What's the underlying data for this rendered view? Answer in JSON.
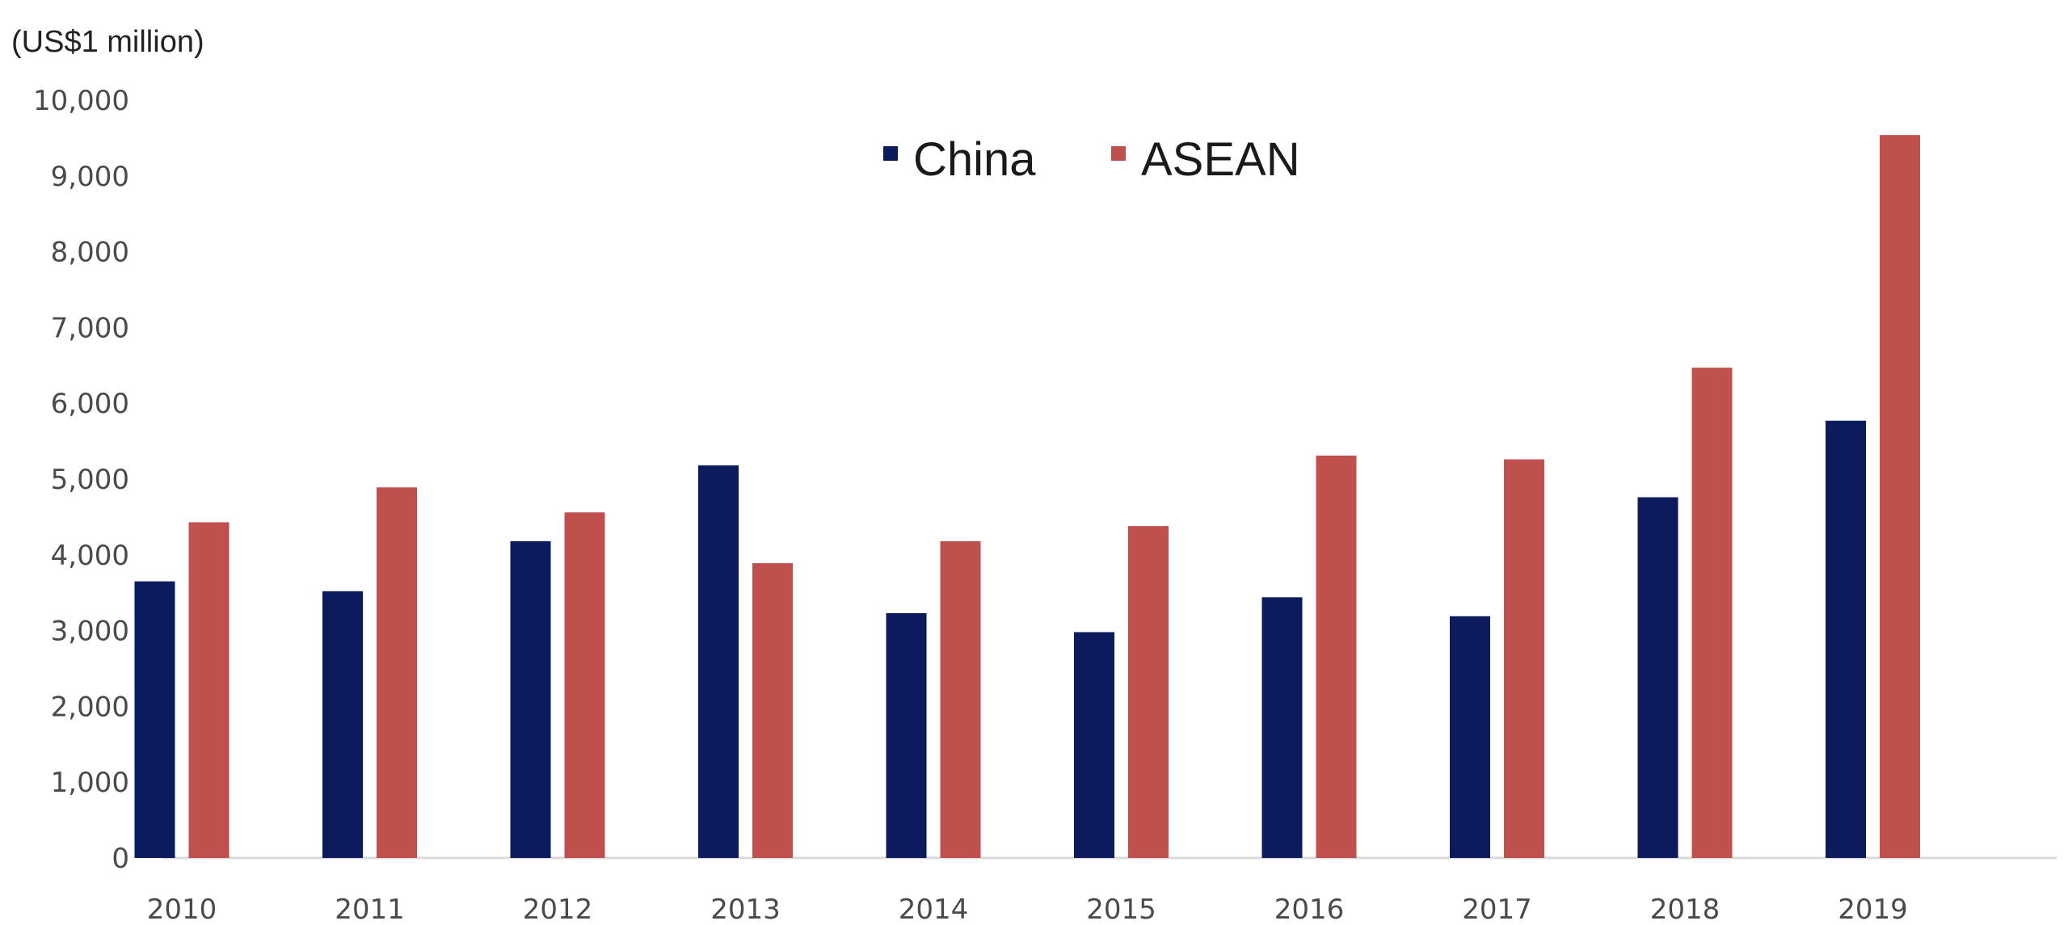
{
  "chart_data": {
    "type": "bar",
    "unit_label": "(US$1 million)",
    "categories": [
      "2010",
      "2011",
      "2012",
      "2013",
      "2014",
      "2015",
      "2016",
      "2017",
      "2018",
      "2019"
    ],
    "series": [
      {
        "name": "China",
        "color": "#0b1b5e",
        "values": [
          3650,
          3520,
          4180,
          5180,
          3230,
          2980,
          3440,
          3190,
          4760,
          5770
        ]
      },
      {
        "name": "ASEAN",
        "color": "#c0504d",
        "values": [
          4430,
          4890,
          4560,
          3890,
          4180,
          4380,
          5310,
          5260,
          6470,
          9540
        ]
      }
    ],
    "y_ticks": [
      "0",
      "1,000",
      "2,000",
      "3,000",
      "4,000",
      "5,000",
      "6,000",
      "7,000",
      "8,000",
      "9,000",
      "10,000"
    ],
    "ylim": [
      0,
      10000
    ],
    "grid": false,
    "legend_position": "top-center"
  }
}
